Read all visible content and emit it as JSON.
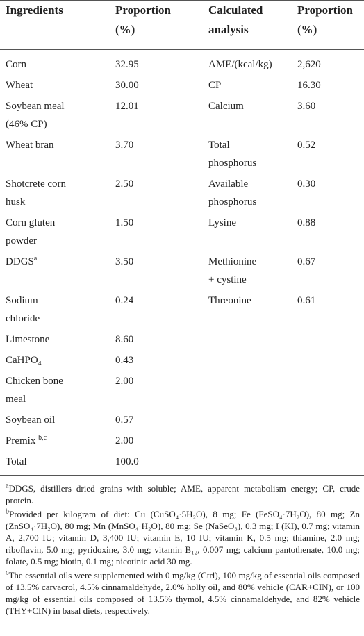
{
  "table": {
    "headers": [
      [
        "Ingredients"
      ],
      [
        "Proportion",
        "(%)"
      ],
      [
        "Calculated",
        "analysis"
      ],
      [
        "Proportion",
        "(%)"
      ]
    ],
    "ingredients": [
      {
        "name": [
          "Corn"
        ],
        "proportion": "32.95"
      },
      {
        "name": [
          "Wheat"
        ],
        "proportion": "30.00"
      },
      {
        "name": [
          "Soybean meal",
          "(46% CP)"
        ],
        "proportion": "12.01"
      },
      {
        "name": [
          "Wheat bran"
        ],
        "proportion": "3.70"
      },
      {
        "name": [
          "Shotcrete corn",
          "husk"
        ],
        "proportion": "2.50"
      },
      {
        "name": [
          "Corn gluten",
          "powder"
        ],
        "proportion": "1.50"
      },
      {
        "name": [
          "DDGS"
        ],
        "sup": "a",
        "proportion": "3.50"
      },
      {
        "name": [
          "Sodium",
          "chloride"
        ],
        "proportion": "0.24"
      },
      {
        "name": [
          "Limestone"
        ],
        "proportion": "8.60"
      },
      {
        "name": [
          "CaHPO₄"
        ],
        "proportion": "0.43"
      },
      {
        "name": [
          "Chicken bone",
          "meal"
        ],
        "proportion": "2.00"
      },
      {
        "name": [
          "Soybean oil"
        ],
        "proportion": "0.57"
      },
      {
        "name": [
          "Premix "
        ],
        "sup": "b,c",
        "proportion": "2.00"
      },
      {
        "name": [
          "Total"
        ],
        "proportion": "100.0"
      }
    ],
    "analysis": [
      {
        "name": [
          "AME/(kcal/kg)"
        ],
        "proportion": "2,620"
      },
      {
        "name": [
          "CP"
        ],
        "proportion": "16.30"
      },
      {
        "name": [
          "Calcium"
        ],
        "proportion": "3.60"
      },
      {
        "name": [
          "Total",
          "phosphorus"
        ],
        "proportion": "0.52"
      },
      {
        "name": [
          "Available",
          "phosphorus"
        ],
        "proportion": "0.30"
      },
      {
        "name": [
          "Lysine"
        ],
        "proportion": "0.88"
      },
      {
        "name": [
          "Methionine",
          "+ cystine"
        ],
        "proportion": "0.67"
      },
      {
        "name": [
          "Threonine"
        ],
        "proportion": "0.61"
      }
    ]
  },
  "footnotes": [
    {
      "marker": "a",
      "text": "DDGS, distillers dried grains with soluble; AME, apparent metabolism energy; CP, crude protein."
    },
    {
      "marker": "b",
      "text": "Provided per kilogram of diet: Cu (CuSO₄·5H₂O), 8 mg; Fe (FeSO₄·7H₂O), 80 mg; Zn (ZnSO₄·7H₂O), 80 mg; Mn (MnSO₄·H₂O), 80 mg; Se (NaSeO₃), 0.3 mg; I (KI), 0.7 mg; vitamin A, 2,700 IU; vitamin D, 3,400 IU; vitamin E, 10 IU; vitamin K, 0.5 mg; thiamine, 2.0 mg; riboflavin, 5.0 mg; pyridoxine, 3.0 mg; vitamin B₁₂, 0.007 mg; calcium pantothenate, 10.0 mg; folate, 0.5 mg; biotin, 0.1 mg; nicotinic acid 30 mg."
    },
    {
      "marker": "c",
      "text": "The essential oils were supplemented with 0 mg/kg (Ctrl), 100 mg/kg of essential oils composed of 13.5% carvacrol, 4.5% cinnamaldehyde, 2.0% holly oil, and 80% vehicle (CAR+CIN), or 100 mg/kg of essential oils composed of 13.5% thymol, 4.5% cinnamaldehyde, and 82% vehicle (THY+CIN) in basal diets, respectively."
    }
  ]
}
